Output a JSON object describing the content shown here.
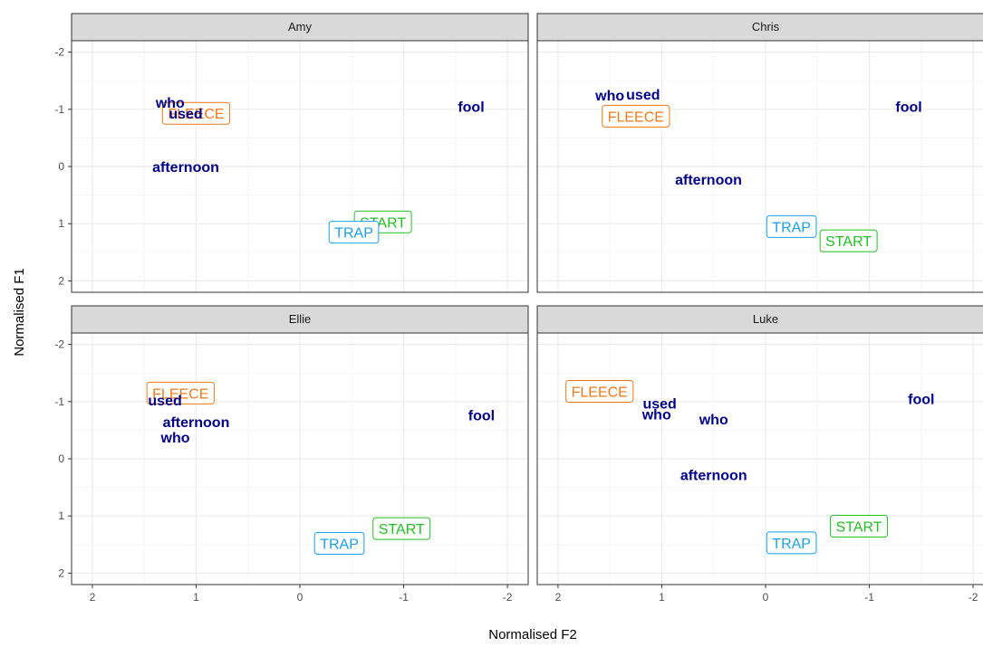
{
  "chart_data": {
    "type": "scatter",
    "title": "",
    "xlabel": "Normalised F2",
    "ylabel": "Normalised F1",
    "xlim": [
      2.2,
      -2.2
    ],
    "ylim": [
      -2.2,
      2.2
    ],
    "x_reversed": true,
    "y_reversed": true,
    "x_ticks": [
      2,
      1,
      0,
      -1,
      -2
    ],
    "y_ticks": [
      -2,
      -1,
      0,
      1,
      2
    ],
    "x_tick_labels": [
      "2",
      "1",
      "0",
      "-1",
      "-2"
    ],
    "y_tick_labels": [
      "-2",
      "-1",
      "0",
      "1",
      "2"
    ],
    "grid": true,
    "legend": "none",
    "colors": {
      "word": "#00008b",
      "FLEECE": "#f07818",
      "START": "#22c022",
      "TRAP": "#1aa0e8"
    },
    "panels": [
      {
        "name": "Amy",
        "words": [
          {
            "label": "who",
            "x": 1.25,
            "y": -1.12
          },
          {
            "label": "used",
            "x": 1.1,
            "y": -0.93
          },
          {
            "label": "afternoon",
            "x": 1.1,
            "y": 0.0
          },
          {
            "label": "fool",
            "x": -1.65,
            "y": -1.05
          }
        ],
        "vowels": [
          {
            "label": "FLEECE",
            "x": 1.0,
            "y": -0.93
          },
          {
            "label": "START",
            "x": -0.8,
            "y": 0.97
          },
          {
            "label": "TRAP",
            "x": -0.52,
            "y": 1.15
          }
        ]
      },
      {
        "name": "Chris",
        "words": [
          {
            "label": "who",
            "x": 1.5,
            "y": -1.25
          },
          {
            "label": "used",
            "x": 1.18,
            "y": -1.27
          },
          {
            "label": "afternoon",
            "x": 0.55,
            "y": 0.22
          },
          {
            "label": "fool",
            "x": -1.38,
            "y": -1.05
          }
        ],
        "vowels": [
          {
            "label": "FLEECE",
            "x": 1.25,
            "y": -0.88
          },
          {
            "label": "TRAP",
            "x": -0.25,
            "y": 1.05
          },
          {
            "label": "START",
            "x": -0.8,
            "y": 1.3
          }
        ]
      },
      {
        "name": "Ellie",
        "words": [
          {
            "label": "used",
            "x": 1.3,
            "y": -1.03
          },
          {
            "label": "afternoon",
            "x": 1.0,
            "y": -0.65
          },
          {
            "label": "who",
            "x": 1.2,
            "y": -0.38
          },
          {
            "label": "fool",
            "x": -1.75,
            "y": -0.77
          }
        ],
        "vowels": [
          {
            "label": "FLEECE",
            "x": 1.15,
            "y": -1.15
          },
          {
            "label": "START",
            "x": -0.98,
            "y": 1.22
          },
          {
            "label": "TRAP",
            "x": -0.38,
            "y": 1.48
          }
        ]
      },
      {
        "name": "Luke",
        "words": [
          {
            "label": "used",
            "x": 1.02,
            "y": -0.97
          },
          {
            "label": "who",
            "x": 1.05,
            "y": -0.78
          },
          {
            "label": "who",
            "x": 0.5,
            "y": -0.7
          },
          {
            "label": "afternoon",
            "x": 0.5,
            "y": 0.28
          },
          {
            "label": "fool",
            "x": -1.5,
            "y": -1.05
          }
        ],
        "vowels": [
          {
            "label": "FLEECE",
            "x": 1.6,
            "y": -1.18
          },
          {
            "label": "START",
            "x": -0.9,
            "y": 1.18
          },
          {
            "label": "TRAP",
            "x": -0.25,
            "y": 1.47
          }
        ]
      }
    ]
  }
}
